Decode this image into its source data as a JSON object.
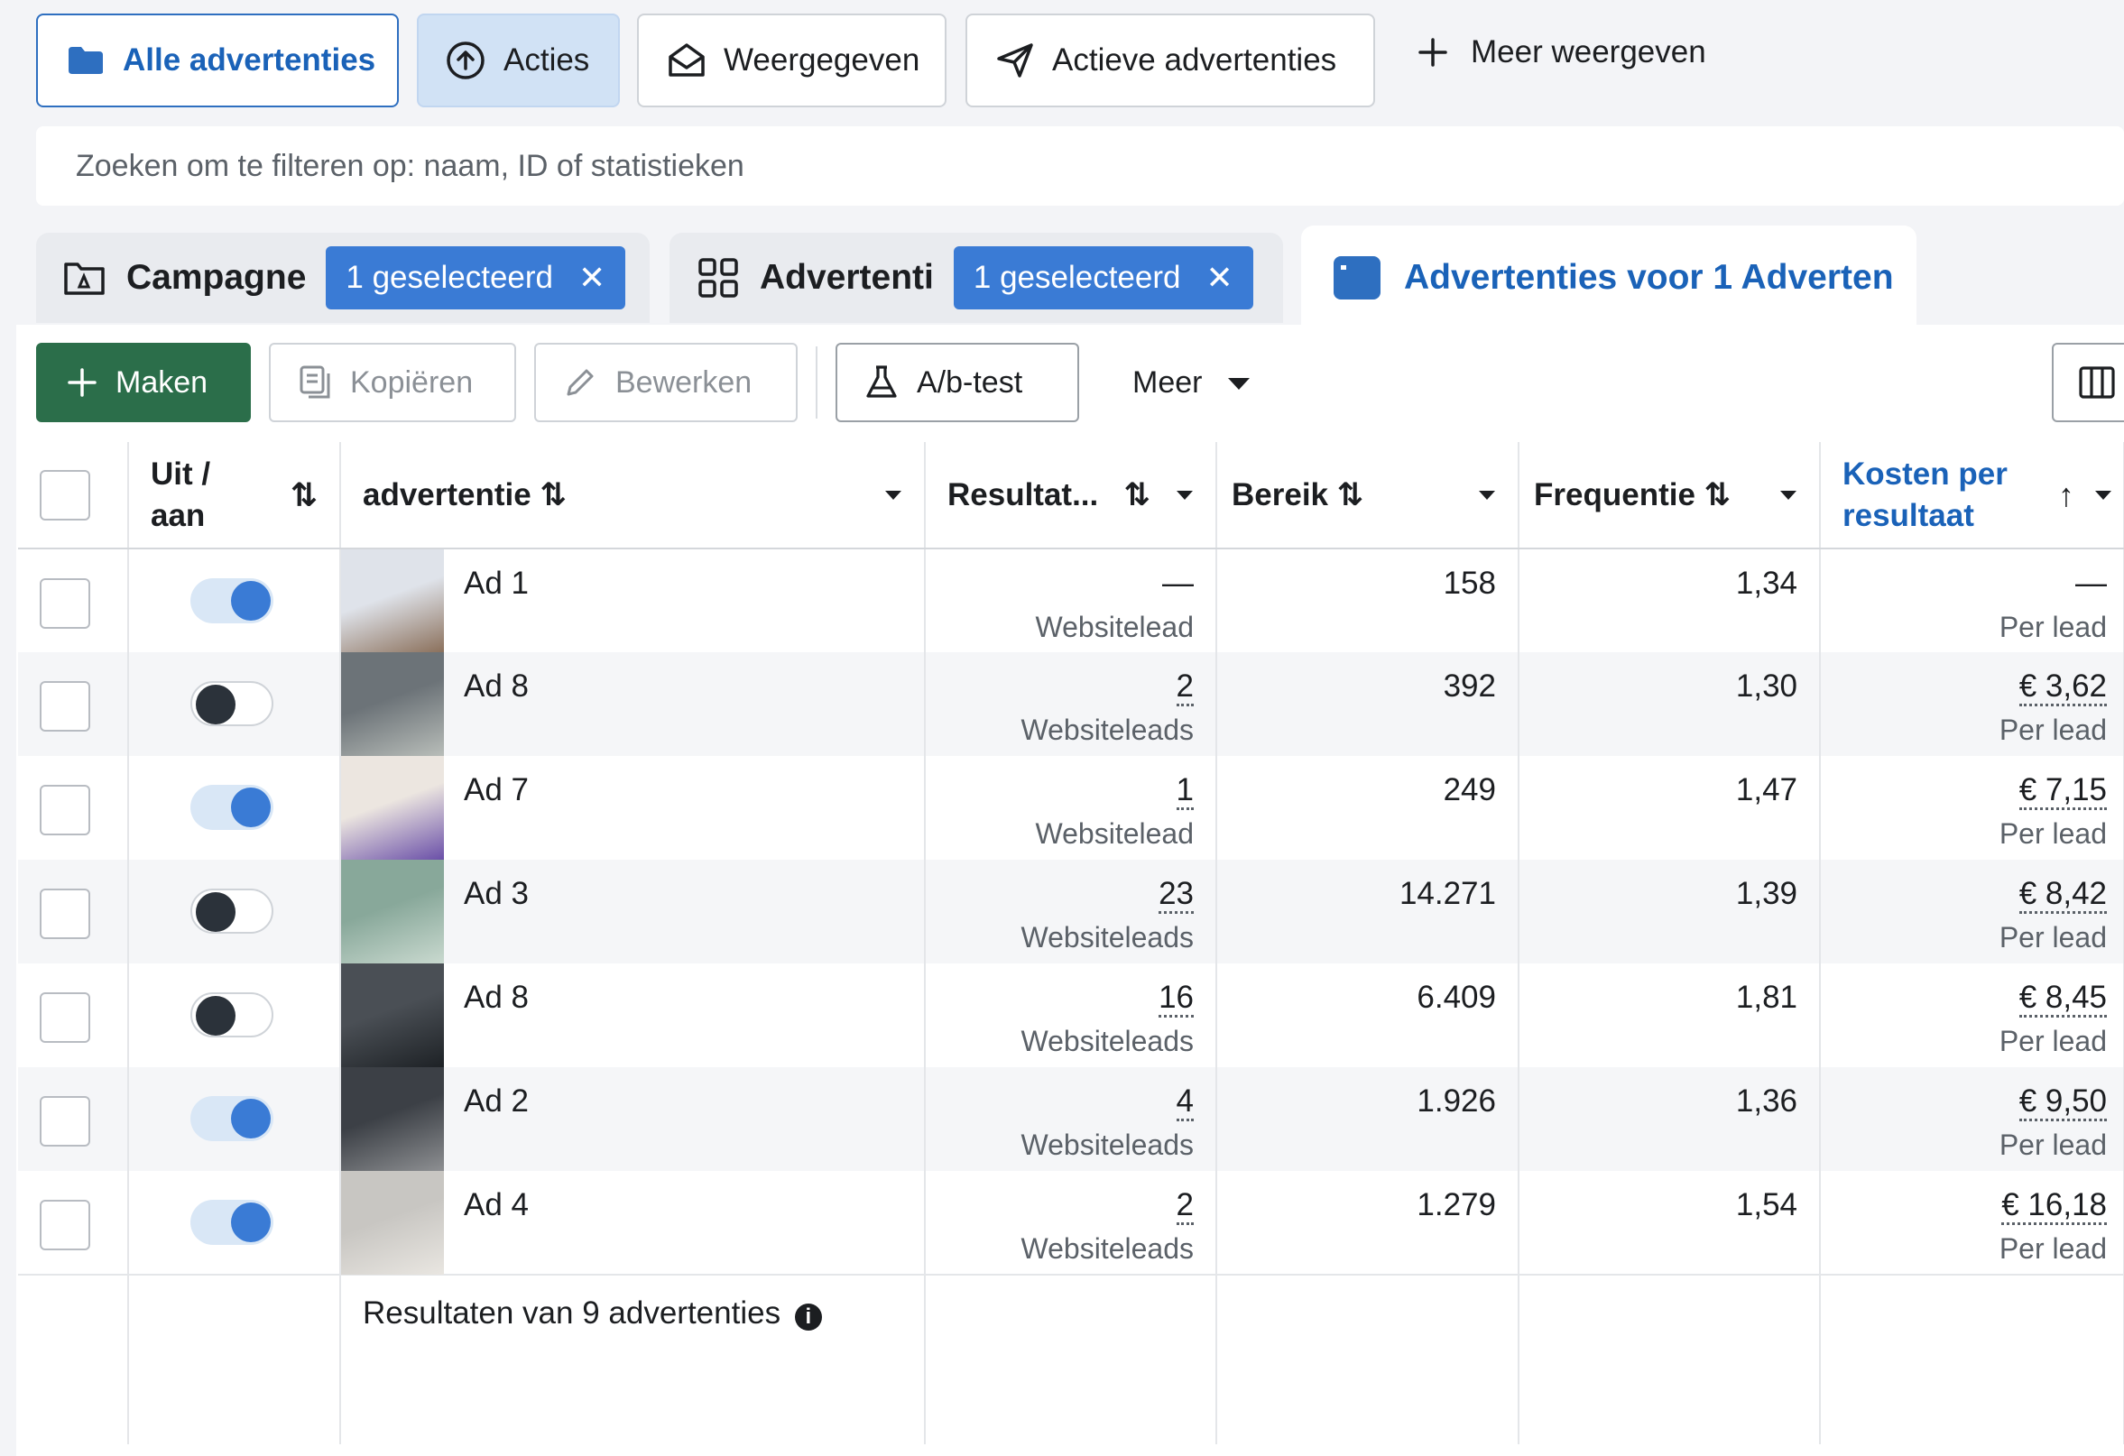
{
  "filters": {
    "all_ads": "Alle advertenties",
    "actions": "Acties",
    "displayed": "Weergegeven",
    "active_ads": "Actieve advertenties",
    "show_more": "Meer weergeven"
  },
  "search": {
    "placeholder": "Zoeken om te filteren op: naam, ID of statistieken"
  },
  "tabs": {
    "campaign": {
      "title": "Campagne",
      "chip": "1 geselecteerd"
    },
    "adset": {
      "title": "Advertenti",
      "chip": "1 geselecteerd"
    },
    "ads": {
      "title": "Advertenties voor 1 Adverten"
    }
  },
  "toolbar": {
    "create": "Maken",
    "copy": "Kopiëren",
    "edit": "Bewerken",
    "ab_test": "A/b-test",
    "more": "Meer"
  },
  "table": {
    "headers": {
      "toggle_line1": "Uit /",
      "toggle_line2": "aan",
      "ad": "advertentie",
      "results": "Resultat...",
      "reach": "Bereik",
      "frequency": "Frequentie",
      "cost_line1": "Kosten per",
      "cost_line2": "resultaat"
    },
    "rows": [
      {
        "name": "Ad 1",
        "on": true,
        "results": "—",
        "results_label": "Websitelead",
        "reach": "158",
        "frequency": "1,34",
        "cost": "—",
        "cost_label": "Per lead"
      },
      {
        "name": "Ad 8",
        "on": false,
        "results": "2",
        "results_label": "Websiteleads",
        "reach": "392",
        "frequency": "1,30",
        "cost": "€ 3,62",
        "cost_label": "Per lead"
      },
      {
        "name": "Ad 7",
        "on": true,
        "results": "1",
        "results_label": "Websitelead",
        "reach": "249",
        "frequency": "1,47",
        "cost": "€ 7,15",
        "cost_label": "Per lead"
      },
      {
        "name": "Ad 3",
        "on": false,
        "results": "23",
        "results_label": "Websiteleads",
        "reach": "14.271",
        "frequency": "1,39",
        "cost": "€ 8,42",
        "cost_label": "Per lead"
      },
      {
        "name": "Ad 8",
        "on": false,
        "results": "16",
        "results_label": "Websiteleads",
        "reach": "6.409",
        "frequency": "1,81",
        "cost": "€ 8,45",
        "cost_label": "Per lead"
      },
      {
        "name": "Ad 2",
        "on": true,
        "results": "4",
        "results_label": "Websiteleads",
        "reach": "1.926",
        "frequency": "1,36",
        "cost": "€ 9,50",
        "cost_label": "Per lead"
      },
      {
        "name": "Ad 4",
        "on": true,
        "results": "2",
        "results_label": "Websiteleads",
        "reach": "1.279",
        "frequency": "1,54",
        "cost": "€ 16,18",
        "cost_label": "Per lead"
      }
    ],
    "footer": "Resultaten van 9 advertenties"
  },
  "thumb_colors": [
    [
      "#dfe3ea",
      "#8a6f5a"
    ],
    [
      "#6c7378",
      "#b8bdb9"
    ],
    [
      "#ece6e0",
      "#6a4fa8"
    ],
    [
      "#88a89a",
      "#c9d9cf"
    ],
    [
      "#4a4f55",
      "#1e2226"
    ],
    [
      "#3c4046",
      "#8d8f92"
    ],
    [
      "#c8c6c2",
      "#e9e6e1"
    ]
  ],
  "colors": {
    "accent": "#3a7bd5",
    "create": "#2b6e4a"
  }
}
